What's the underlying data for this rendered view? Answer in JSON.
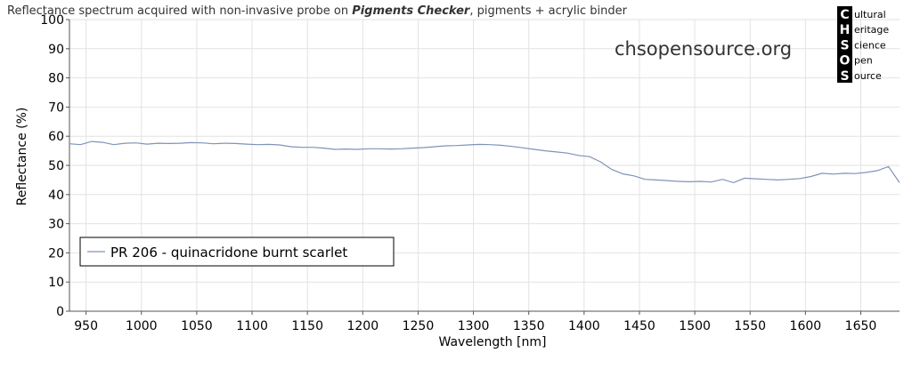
{
  "header": {
    "title_prefix": "Reflectance spectrum acquired with non-invasive probe on ",
    "title_bold": "Pigments Checker",
    "title_suffix": ", pigments + acrylic binder",
    "website": "chsopensource.org"
  },
  "logo": {
    "rows": [
      {
        "initial": "C",
        "rest": "ultural"
      },
      {
        "initial": "H",
        "rest": "eritage"
      },
      {
        "initial": "S",
        "rest": "cience"
      },
      {
        "initial": "O",
        "rest": "pen"
      },
      {
        "initial": "S",
        "rest": "ource"
      }
    ]
  },
  "chart_data": {
    "type": "line",
    "xlabel": "Wavelength [nm]",
    "ylabel": "Reflectance (%)",
    "xlim": [
      935,
      1685
    ],
    "ylim": [
      0,
      100
    ],
    "xticks": [
      950,
      1000,
      1050,
      1100,
      1150,
      1200,
      1250,
      1300,
      1350,
      1400,
      1450,
      1500,
      1550,
      1600,
      1650
    ],
    "yticks": [
      0,
      10,
      20,
      30,
      40,
      50,
      60,
      70,
      80,
      90,
      100
    ],
    "grid": true,
    "legend_position": "bottom-left",
    "series": [
      {
        "name": "PR 206 - quinacridone burnt scarlet",
        "color": "#7f93b8",
        "x": [
          935,
          945,
          955,
          965,
          975,
          985,
          995,
          1005,
          1015,
          1025,
          1035,
          1045,
          1055,
          1065,
          1075,
          1085,
          1095,
          1105,
          1115,
          1125,
          1135,
          1145,
          1155,
          1165,
          1175,
          1185,
          1195,
          1205,
          1215,
          1225,
          1235,
          1245,
          1255,
          1265,
          1275,
          1285,
          1295,
          1305,
          1315,
          1325,
          1335,
          1345,
          1355,
          1365,
          1375,
          1385,
          1395,
          1405,
          1415,
          1425,
          1435,
          1445,
          1455,
          1465,
          1475,
          1485,
          1495,
          1505,
          1515,
          1525,
          1535,
          1545,
          1555,
          1565,
          1575,
          1585,
          1595,
          1605,
          1615,
          1625,
          1635,
          1645,
          1655,
          1665,
          1675,
          1685
        ],
        "y": [
          57.4,
          57.1,
          58.2,
          57.9,
          57.1,
          57.6,
          57.7,
          57.3,
          57.6,
          57.5,
          57.6,
          57.8,
          57.7,
          57.4,
          57.6,
          57.5,
          57.3,
          57.1,
          57.2,
          57.0,
          56.4,
          56.2,
          56.2,
          55.9,
          55.5,
          55.6,
          55.5,
          55.7,
          55.7,
          55.6,
          55.7,
          55.9,
          56.1,
          56.4,
          56.7,
          56.8,
          57.0,
          57.2,
          57.1,
          56.9,
          56.5,
          56.0,
          55.5,
          55.0,
          54.6,
          54.2,
          53.4,
          53.0,
          51.2,
          48.6,
          47.1,
          46.4,
          45.2,
          45.0,
          44.8,
          44.5,
          44.4,
          44.5,
          44.3,
          45.2,
          44.1,
          45.6,
          45.4,
          45.2,
          45.0,
          45.2,
          45.5,
          46.2,
          47.3,
          47.0,
          47.3,
          47.2,
          47.6,
          48.2,
          49.6,
          44.1
        ]
      }
    ]
  }
}
